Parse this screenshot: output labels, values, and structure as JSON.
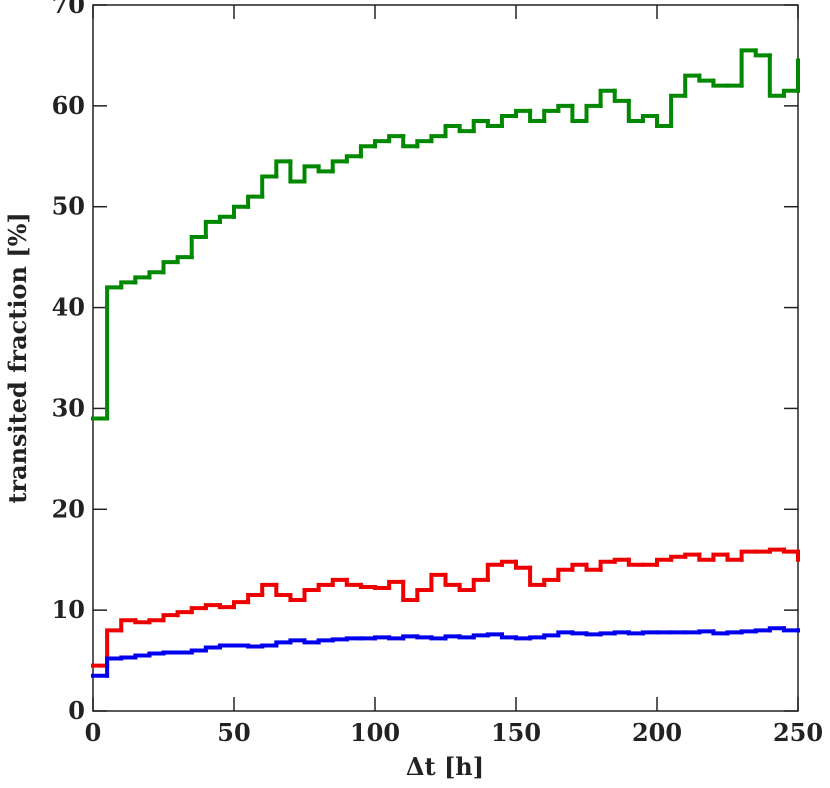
{
  "chart_data": {
    "type": "line",
    "step": true,
    "xlabel": "Δt [h]",
    "ylabel": "transited fraction [%]",
    "x": [
      0,
      5,
      10,
      15,
      20,
      25,
      30,
      35,
      40,
      45,
      50,
      55,
      60,
      65,
      70,
      75,
      80,
      85,
      90,
      95,
      100,
      105,
      110,
      115,
      120,
      125,
      130,
      135,
      140,
      145,
      150,
      155,
      160,
      165,
      170,
      175,
      180,
      185,
      190,
      195,
      200,
      205,
      210,
      215,
      220,
      225,
      230,
      235,
      240,
      245,
      250
    ],
    "series": [
      {
        "color": "#008800",
        "values": [
          29,
          42,
          42.5,
          43,
          43.5,
          44.5,
          45,
          47,
          48.5,
          49,
          50,
          51,
          53,
          54.5,
          52.5,
          54,
          53.5,
          54.5,
          55,
          56,
          56.5,
          57,
          56,
          56.5,
          57,
          58,
          57.5,
          58.5,
          58,
          59,
          59.5,
          58.5,
          59.5,
          60,
          58.5,
          60,
          61.5,
          60.5,
          58.5,
          59,
          58,
          61,
          63,
          62.5,
          62,
          62,
          65.5,
          65,
          61,
          61.5,
          64.5
        ]
      },
      {
        "color": "#ee0000",
        "values": [
          4.5,
          8,
          9,
          8.8,
          9,
          9.5,
          9.8,
          10.2,
          10.5,
          10.3,
          10.8,
          11.5,
          12.5,
          11.5,
          11,
          12,
          12.5,
          13,
          12.5,
          12.3,
          12.2,
          12.8,
          11,
          12,
          13.5,
          12.5,
          12,
          13,
          14.5,
          14.8,
          14.2,
          12.5,
          13,
          14,
          14.5,
          14,
          14.8,
          15,
          14.5,
          14.5,
          15,
          15.3,
          15.5,
          15,
          15.5,
          15,
          15.8,
          15.8,
          16,
          15.8,
          15
        ]
      },
      {
        "color": "#0000ee",
        "values": [
          3.5,
          5.2,
          5.3,
          5.5,
          5.7,
          5.8,
          5.8,
          6,
          6.3,
          6.5,
          6.5,
          6.4,
          6.5,
          6.8,
          7,
          6.8,
          7,
          7.1,
          7.2,
          7.2,
          7.3,
          7.2,
          7.4,
          7.3,
          7.2,
          7.4,
          7.3,
          7.5,
          7.6,
          7.3,
          7.2,
          7.3,
          7.5,
          7.8,
          7.7,
          7.6,
          7.7,
          7.8,
          7.7,
          7.8,
          7.8,
          7.8,
          7.8,
          7.9,
          7.7,
          7.8,
          7.9,
          8,
          8.2,
          8,
          8
        ]
      }
    ],
    "xlim": [
      0,
      250
    ],
    "xticks": [
      0,
      50,
      100,
      150,
      200,
      250
    ],
    "ylim": [
      0,
      70
    ],
    "yticks": [
      0,
      10,
      20,
      30,
      40,
      50,
      60,
      70
    ]
  }
}
